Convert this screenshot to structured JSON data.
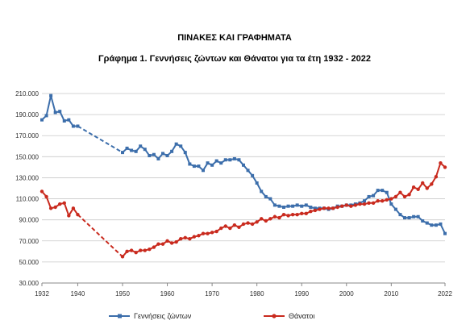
{
  "page": {
    "heading": "ΠΙΝΑΚΕΣ ΚΑΙ ΓΡΑΦΗΜΑΤΑ",
    "subheading": "Γράφημα 1.  Γεννήσεις ζώντων και Θάνατοι για τα έτη 1932 - 2022"
  },
  "chart_data": {
    "type": "line",
    "title": "Γράφημα 1.  Γεννήσεις ζώντων και Θάνατοι για τα έτη 1932 - 2022",
    "xlabel": "",
    "ylabel": "",
    "xlim": [
      1932,
      2022
    ],
    "ylim": [
      30000,
      210000
    ],
    "y_ticks": [
      "30.000",
      "50.000",
      "70.000",
      "90.000",
      "110.000",
      "130.000",
      "150.000",
      "170.000",
      "190.000",
      "210.000"
    ],
    "x_ticks": [
      "1932",
      "1940",
      "1950",
      "1960",
      "1970",
      "1980",
      "1990",
      "2000",
      "2010",
      "2022"
    ],
    "grid": true,
    "legend_position": "bottom",
    "gap_years": [
      1941,
      1942,
      1943,
      1944,
      1945,
      1946,
      1947,
      1948,
      1949
    ],
    "series": [
      {
        "name": "Γεννήσεις ζώντων",
        "color": "#3c6eab",
        "marker": "square",
        "points": [
          [
            1932,
            185000
          ],
          [
            1933,
            189000
          ],
          [
            1934,
            208000
          ],
          [
            1935,
            192000
          ],
          [
            1936,
            193000
          ],
          [
            1937,
            184000
          ],
          [
            1938,
            185000
          ],
          [
            1939,
            179000
          ],
          [
            1940,
            179000
          ],
          [
            1950,
            154000
          ],
          [
            1951,
            158000
          ],
          [
            1952,
            156000
          ],
          [
            1953,
            155000
          ],
          [
            1954,
            160000
          ],
          [
            1955,
            157000
          ],
          [
            1956,
            151000
          ],
          [
            1957,
            152000
          ],
          [
            1958,
            148000
          ],
          [
            1959,
            153000
          ],
          [
            1960,
            151000
          ],
          [
            1961,
            155000
          ],
          [
            1962,
            162000
          ],
          [
            1963,
            160000
          ],
          [
            1964,
            154000
          ],
          [
            1965,
            143000
          ],
          [
            1966,
            141000
          ],
          [
            1967,
            141000
          ],
          [
            1968,
            137000
          ],
          [
            1969,
            144000
          ],
          [
            1970,
            142000
          ],
          [
            1971,
            146000
          ],
          [
            1972,
            144000
          ],
          [
            1973,
            147000
          ],
          [
            1974,
            147000
          ],
          [
            1975,
            148000
          ],
          [
            1976,
            147000
          ],
          [
            1977,
            142000
          ],
          [
            1978,
            137000
          ],
          [
            1979,
            132000
          ],
          [
            1980,
            125000
          ],
          [
            1981,
            117000
          ],
          [
            1982,
            112000
          ],
          [
            1983,
            110000
          ],
          [
            1984,
            104000
          ],
          [
            1985,
            103000
          ],
          [
            1986,
            102000
          ],
          [
            1987,
            103000
          ],
          [
            1988,
            103000
          ],
          [
            1989,
            104000
          ],
          [
            1990,
            103000
          ],
          [
            1991,
            104000
          ],
          [
            1992,
            102000
          ],
          [
            1993,
            101000
          ],
          [
            1994,
            101000
          ],
          [
            1995,
            101000
          ],
          [
            1996,
            100000
          ],
          [
            1997,
            101000
          ],
          [
            1998,
            103000
          ],
          [
            1999,
            103000
          ],
          [
            2000,
            104000
          ],
          [
            2001,
            104000
          ],
          [
            2002,
            105000
          ],
          [
            2003,
            106000
          ],
          [
            2004,
            108000
          ],
          [
            2005,
            112000
          ],
          [
            2006,
            113000
          ],
          [
            2007,
            118000
          ],
          [
            2008,
            118000
          ],
          [
            2009,
            116000
          ],
          [
            2010,
            105000
          ],
          [
            2011,
            100000
          ],
          [
            2012,
            95000
          ],
          [
            2013,
            92000
          ],
          [
            2014,
            92000
          ],
          [
            2015,
            93000
          ],
          [
            2016,
            93000
          ],
          [
            2017,
            89000
          ],
          [
            2018,
            87000
          ],
          [
            2019,
            85000
          ],
          [
            2020,
            85000
          ],
          [
            2021,
            86000
          ],
          [
            2022,
            77000
          ]
        ]
      },
      {
        "name": "Θάνατοι",
        "color": "#c92a1e",
        "marker": "circle",
        "points": [
          [
            1932,
            117000
          ],
          [
            1933,
            112000
          ],
          [
            1934,
            101000
          ],
          [
            1935,
            102000
          ],
          [
            1936,
            105000
          ],
          [
            1937,
            106000
          ],
          [
            1938,
            94000
          ],
          [
            1939,
            101000
          ],
          [
            1940,
            95000
          ],
          [
            1950,
            55000
          ],
          [
            1951,
            60000
          ],
          [
            1952,
            61000
          ],
          [
            1953,
            59000
          ],
          [
            1954,
            61000
          ],
          [
            1955,
            61000
          ],
          [
            1956,
            62000
          ],
          [
            1957,
            64000
          ],
          [
            1958,
            67000
          ],
          [
            1959,
            67000
          ],
          [
            1960,
            70000
          ],
          [
            1961,
            68000
          ],
          [
            1962,
            69000
          ],
          [
            1963,
            72000
          ],
          [
            1964,
            73000
          ],
          [
            1965,
            72000
          ],
          [
            1966,
            74000
          ],
          [
            1967,
            75000
          ],
          [
            1968,
            77000
          ],
          [
            1969,
            77000
          ],
          [
            1970,
            78000
          ],
          [
            1971,
            79000
          ],
          [
            1972,
            82000
          ],
          [
            1973,
            84000
          ],
          [
            1974,
            82000
          ],
          [
            1975,
            85000
          ],
          [
            1976,
            83000
          ],
          [
            1977,
            86000
          ],
          [
            1978,
            87000
          ],
          [
            1979,
            86000
          ],
          [
            1980,
            88000
          ],
          [
            1981,
            91000
          ],
          [
            1982,
            89000
          ],
          [
            1983,
            91000
          ],
          [
            1984,
            93000
          ],
          [
            1985,
            92000
          ],
          [
            1986,
            95000
          ],
          [
            1987,
            94000
          ],
          [
            1988,
            95000
          ],
          [
            1989,
            95000
          ],
          [
            1990,
            96000
          ],
          [
            1991,
            96000
          ],
          [
            1992,
            98000
          ],
          [
            1993,
            99000
          ],
          [
            1994,
            100000
          ],
          [
            1995,
            101000
          ],
          [
            1996,
            101000
          ],
          [
            1997,
            101000
          ],
          [
            1998,
            102000
          ],
          [
            1999,
            103000
          ],
          [
            2000,
            104000
          ],
          [
            2001,
            103000
          ],
          [
            2002,
            104000
          ],
          [
            2003,
            105000
          ],
          [
            2004,
            105000
          ],
          [
            2005,
            106000
          ],
          [
            2006,
            106000
          ],
          [
            2007,
            108000
          ],
          [
            2008,
            108000
          ],
          [
            2009,
            109000
          ],
          [
            2010,
            110000
          ],
          [
            2011,
            112000
          ],
          [
            2012,
            116000
          ],
          [
            2013,
            112000
          ],
          [
            2014,
            114000
          ],
          [
            2015,
            121000
          ],
          [
            2016,
            119000
          ],
          [
            2017,
            125000
          ],
          [
            2018,
            120000
          ],
          [
            2019,
            124000
          ],
          [
            2020,
            131000
          ],
          [
            2021,
            144000
          ],
          [
            2022,
            140000
          ]
        ]
      }
    ]
  }
}
